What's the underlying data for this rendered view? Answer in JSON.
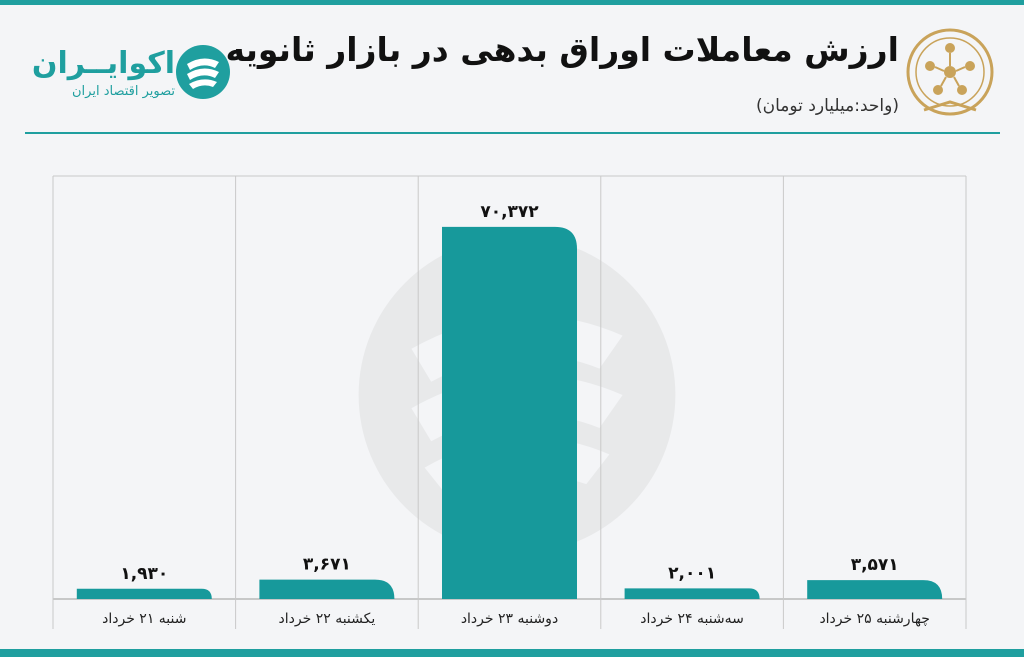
{
  "header": {
    "title": "ارزش معاملات اوراق بدهی در بازار ثانویه",
    "subtitle": "(واحد:میلیارد تومان)"
  },
  "brand": {
    "name": "اکوایــران",
    "tagline": "تصویر اقتصاد ایران",
    "icon": "ecoiran-logo-icon"
  },
  "seal": {
    "icon": "exchange-seal-icon"
  },
  "colors": {
    "accent": "#1f9f9f",
    "bar": "#17999b",
    "grid": "#c9c9c9",
    "background": "#f4f5f7"
  },
  "chart_data": {
    "type": "bar",
    "title": "ارزش معاملات اوراق بدهی در بازار ثانویه",
    "ylabel": "",
    "xlabel": "",
    "ylim": [
      0,
      80000
    ],
    "grid": true,
    "categories": [
      "شنبه ۲۱ خرداد",
      "یکشنبه ۲۲ خرداد",
      "دوشنبه ۲۳ خرداد",
      "سه‌شنبه ۲۴ خرداد",
      "چهارشنبه ۲۵ خرداد"
    ],
    "values": [
      1930,
      3671,
      70372,
      2001,
      3571
    ],
    "data_labels": [
      "۱,۹۳۰",
      "۳,۶۷۱",
      "۷۰,۳۷۲",
      "۲,۰۰۱",
      "۳,۵۷۱"
    ]
  }
}
